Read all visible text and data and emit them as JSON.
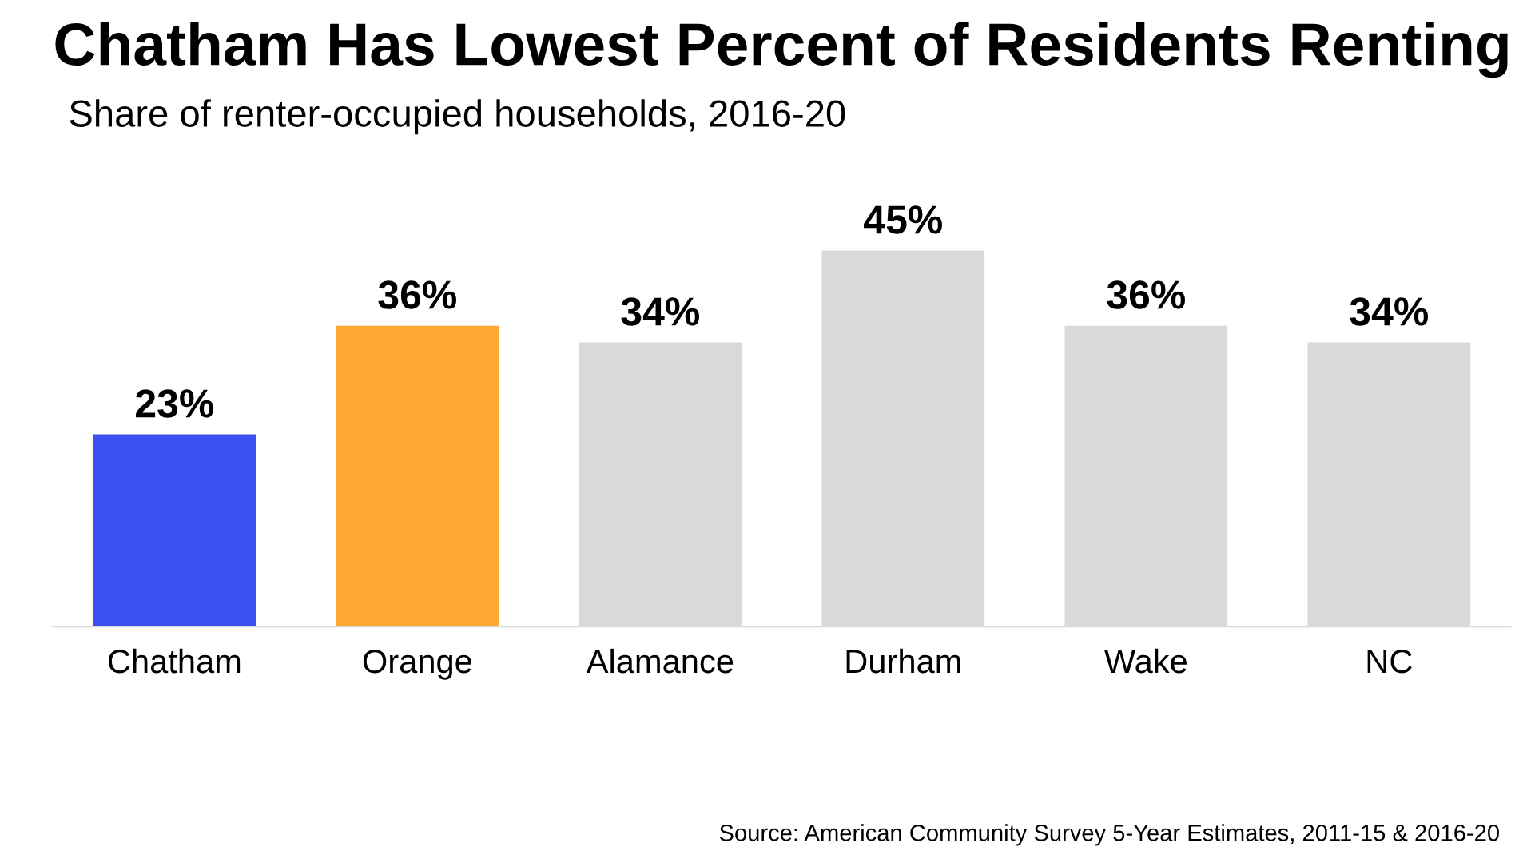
{
  "chart_data": {
    "type": "bar",
    "title": "Chatham Has Lowest Percent of Residents Renting",
    "subtitle": "Share of renter-occupied households, 2016-20",
    "categories": [
      "Chatham",
      "Orange",
      "Alamance",
      "Durham",
      "Wake",
      "NC"
    ],
    "values": [
      23,
      36,
      34,
      45,
      36,
      34
    ],
    "colors": [
      "#3b50f0",
      "#ffa935",
      "#d9d9d9",
      "#d9d9d9",
      "#d9d9d9",
      "#d9d9d9"
    ],
    "value_labels": [
      "23%",
      "36%",
      "34%",
      "45%",
      "36%",
      "34%"
    ],
    "annotations": [
      "Source: American Community Survey 5-Year Estimates, 2011-15 & 2016-20"
    ],
    "grid": false,
    "legend": false
  }
}
